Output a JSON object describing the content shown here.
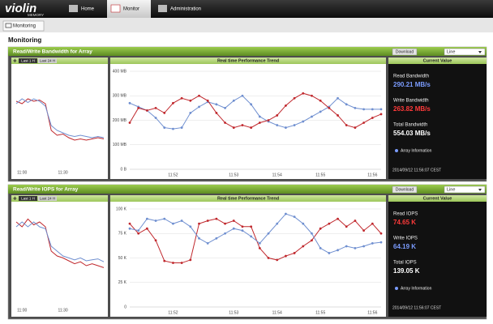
{
  "nav": {
    "logo": "violin",
    "logo_sub": "MEMORY",
    "tabs": [
      "Home",
      "Monitor",
      "Administration"
    ],
    "active": 1
  },
  "subnav": {
    "button": "Monitoring"
  },
  "heading": "Monitoring",
  "panels": [
    {
      "title": "Read/Write Bandwidth for Array",
      "download": "Download",
      "select": "Line",
      "range_buttons": [
        "Last 1 H",
        "Last 24 H"
      ],
      "overview": {
        "type": "line",
        "categories": [
          null,
          "11:00",
          null,
          null,
          null,
          null,
          null,
          null,
          "11:30",
          null,
          null,
          null,
          null,
          null,
          null,
          null
        ],
        "ylim": [
          0,
          400
        ],
        "series": [
          {
            "color": "#c0282d",
            "values": [
              270,
              260,
              280,
              270,
              275,
              260,
              150,
              130,
              135,
              120,
              110,
              115,
              110,
              115,
              120,
              115
            ]
          },
          {
            "color": "#6f8fd0",
            "values": [
              260,
              280,
              265,
              280,
              270,
              250,
              170,
              150,
              140,
              130,
              125,
              130,
              125,
              120,
              125,
              120
            ]
          }
        ]
      },
      "trend": {
        "type": "line",
        "title": "Real time Performance Trend",
        "grid": true,
        "categories": [
          null,
          null,
          null,
          null,
          null,
          "11:52",
          null,
          null,
          null,
          null,
          null,
          null,
          "11:53",
          null,
          null,
          null,
          null,
          "11:54",
          null,
          null,
          null,
          null,
          "11:55",
          null,
          null,
          null,
          null,
          null,
          "11:56",
          null
        ],
        "ylim": [
          0,
          400
        ],
        "yticks": [
          {
            "value": 0,
            "label": "0 B"
          },
          {
            "value": 100,
            "label": "100 MB"
          },
          {
            "value": 200,
            "label": "200 MB"
          },
          {
            "value": 300,
            "label": "300 MB"
          },
          {
            "value": 400,
            "label": "400 MB"
          }
        ],
        "series": [
          {
            "color": "#6f8fd0",
            "values": [
              270,
              255,
              240,
              210,
              170,
              165,
              170,
              230,
              255,
              275,
              265,
              250,
              280,
              300,
              265,
              215,
              195,
              180,
              170,
              180,
              195,
              215,
              235,
              255,
              290,
              265,
              250,
              245,
              245,
              245
            ]
          },
          {
            "color": "#c0282d",
            "values": [
              190,
              250,
              240,
              250,
              230,
              270,
              290,
              280,
              300,
              280,
              230,
              190,
              170,
              180,
              170,
              190,
              200,
              220,
              260,
              290,
              310,
              300,
              280,
              250,
              220,
              180,
              170,
              190,
              210,
              225
            ]
          }
        ]
      },
      "current": {
        "title": "Current Value",
        "items": [
          {
            "label": "Read Bandwidth",
            "value": "290.21 MB/s",
            "color": "#7b9cff"
          },
          {
            "label": "Write Bandwidth",
            "value": "263.82 MB/s",
            "color": "#ff3a3a"
          },
          {
            "label": "Total Bandwidth",
            "value": "554.03 MB/s",
            "color": "#ffffff"
          }
        ],
        "info": "Array Information",
        "timestamp": "2014/09/12 11:56:07 CEST"
      }
    },
    {
      "title": "Read/Write IOPS for Array",
      "download": "Download",
      "select": "Line",
      "range_buttons": [
        "Last 1 H",
        "Last 24 H"
      ],
      "overview": {
        "type": "line",
        "categories": [
          null,
          "11:00",
          null,
          null,
          null,
          null,
          null,
          null,
          "11:30",
          null,
          null,
          null,
          null,
          null,
          null,
          null
        ],
        "ylim": [
          0,
          100
        ],
        "series": [
          {
            "color": "#c0282d",
            "values": [
              85,
              80,
              88,
              82,
              85,
              80,
              55,
              50,
              48,
              45,
              42,
              44,
              40,
              42,
              40,
              38
            ]
          },
          {
            "color": "#6f8fd0",
            "values": [
              80,
              85,
              80,
              85,
              80,
              78,
              60,
              55,
              50,
              48,
              46,
              48,
              45,
              46,
              47,
              44
            ]
          }
        ]
      },
      "trend": {
        "type": "line",
        "title": "Real time Performance Trend",
        "grid": true,
        "categories": [
          null,
          null,
          null,
          null,
          null,
          "11:52",
          null,
          null,
          null,
          null,
          null,
          null,
          "11:53",
          null,
          null,
          null,
          null,
          "11:54",
          null,
          null,
          null,
          null,
          "11:55",
          null,
          null,
          null,
          null,
          null,
          "11:56",
          null
        ],
        "ylim": [
          0,
          100
        ],
        "yticks": [
          0,
          {
            "value": 25,
            "label": "25 K"
          },
          {
            "value": 50,
            "label": "50 K"
          },
          {
            "value": 75,
            "label": "75 K"
          },
          {
            "value": 100,
            "label": "100 K"
          }
        ],
        "series": [
          {
            "color": "#c0282d",
            "values": [
              85,
              75,
              80,
              68,
              47,
              45,
              45,
              48,
              85,
              88,
              90,
              85,
              88,
              82,
              82,
              60,
              50,
              48,
              52,
              55,
              62,
              68,
              80,
              85,
              90,
              82,
              88,
              78,
              85,
              75
            ]
          },
          {
            "color": "#6f8fd0",
            "values": [
              80,
              78,
              90,
              88,
              90,
              85,
              88,
              82,
              70,
              65,
              70,
              75,
              80,
              78,
              72,
              65,
              75,
              85,
              95,
              92,
              85,
              75,
              60,
              55,
              58,
              62,
              60,
              62,
              65,
              66
            ]
          }
        ]
      },
      "current": {
        "title": "Current Value",
        "items": [
          {
            "label": "Read IOPS",
            "value": "74.65 K",
            "color": "#ff3a3a"
          },
          {
            "label": "Write IOPS",
            "value": "64.19 K",
            "color": "#7b9cff"
          },
          {
            "label": "Total IOPS",
            "value": "139.05 K",
            "color": "#ffffff"
          }
        ],
        "info": "Array Information",
        "timestamp": "2014/09/12 11:56:07 CEST"
      }
    }
  ]
}
